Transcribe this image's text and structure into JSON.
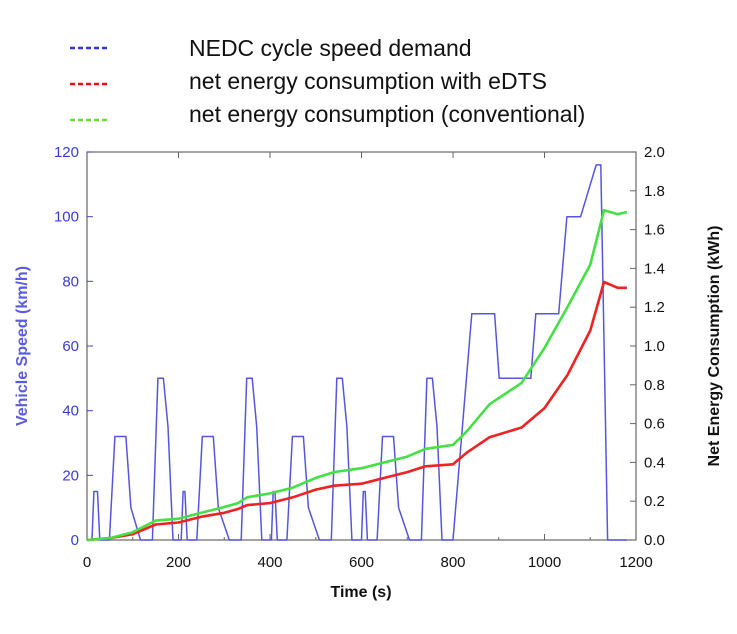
{
  "chart_data": {
    "type": "line",
    "x_label": "Time (s)",
    "y_left_label": "Vehicle Speed (km/h)",
    "y_right_label": "Net Energy Consumption (kWh)",
    "x_range": [
      0,
      1200
    ],
    "y_left_range": [
      0,
      120
    ],
    "y_right_range": [
      0,
      2.0
    ],
    "x_ticks": [
      "0",
      "200",
      "400",
      "600",
      "800",
      "1000",
      "1200"
    ],
    "y_left_ticks": [
      "0",
      "20",
      "40",
      "60",
      "80",
      "100",
      "120"
    ],
    "y_right_ticks": [
      "0.0",
      "0.2",
      "0.4",
      "0.6",
      "0.8",
      "1.0",
      "1.2",
      "1.4",
      "1.6",
      "1.8",
      "2.0"
    ],
    "legend_position": "top",
    "legend": [
      {
        "label": "NEDC cycle speed demand",
        "color": "#3333dd",
        "style": "dashed"
      },
      {
        "label": "net energy consumption with eDTS",
        "color": "#ee1111",
        "style": "dashed"
      },
      {
        "label": "net energy consumption (conventional)",
        "color": "#66dd33",
        "style": "dashed"
      }
    ],
    "series": [
      {
        "name": "NEDC cycle speed demand",
        "axis": "left",
        "color": "#5555e0",
        "points": [
          [
            0,
            0
          ],
          [
            11,
            0
          ],
          [
            15,
            15
          ],
          [
            23,
            15
          ],
          [
            28,
            0
          ],
          [
            49,
            0
          ],
          [
            61,
            32
          ],
          [
            85,
            32
          ],
          [
            96,
            10
          ],
          [
            117,
            0
          ],
          [
            143,
            0
          ],
          [
            155,
            50
          ],
          [
            167,
            50
          ],
          [
            177,
            35
          ],
          [
            188,
            0
          ],
          [
            206,
            0
          ],
          [
            210,
            15
          ],
          [
            214,
            15
          ],
          [
            219,
            0
          ],
          [
            240,
            0
          ],
          [
            252,
            32
          ],
          [
            276,
            32
          ],
          [
            287,
            10
          ],
          [
            311,
            0
          ],
          [
            337,
            0
          ],
          [
            349,
            50
          ],
          [
            361,
            50
          ],
          [
            371,
            35
          ],
          [
            382,
            0
          ],
          [
            403,
            0
          ],
          [
            407,
            15
          ],
          [
            411,
            15
          ],
          [
            416,
            0
          ],
          [
            437,
            0
          ],
          [
            449,
            32
          ],
          [
            473,
            32
          ],
          [
            484,
            10
          ],
          [
            508,
            0
          ],
          [
            534,
            0
          ],
          [
            546,
            50
          ],
          [
            558,
            50
          ],
          [
            568,
            35
          ],
          [
            579,
            0
          ],
          [
            600,
            0
          ],
          [
            604,
            15
          ],
          [
            608,
            15
          ],
          [
            613,
            0
          ],
          [
            634,
            0
          ],
          [
            646,
            32
          ],
          [
            670,
            32
          ],
          [
            681,
            10
          ],
          [
            705,
            0
          ],
          [
            731,
            0
          ],
          [
            743,
            50
          ],
          [
            755,
            50
          ],
          [
            765,
            35
          ],
          [
            776,
            0
          ],
          [
            800,
            0
          ],
          [
            841,
            70
          ],
          [
            891,
            70
          ],
          [
            901,
            50
          ],
          [
            970,
            50
          ],
          [
            981,
            70
          ],
          [
            1031,
            70
          ],
          [
            1049,
            100
          ],
          [
            1079,
            100
          ],
          [
            1113,
            116
          ],
          [
            1123,
            116
          ],
          [
            1138,
            0
          ],
          [
            1180,
            0
          ]
        ]
      },
      {
        "name": "net energy consumption with eDTS",
        "axis": "right",
        "color": "#ee2222",
        "points": [
          [
            0,
            0.0
          ],
          [
            50,
            0.01
          ],
          [
            100,
            0.03
          ],
          [
            150,
            0.08
          ],
          [
            200,
            0.09
          ],
          [
            250,
            0.12
          ],
          [
            300,
            0.14
          ],
          [
            330,
            0.16
          ],
          [
            350,
            0.18
          ],
          [
            400,
            0.19
          ],
          [
            450,
            0.22
          ],
          [
            500,
            0.26
          ],
          [
            540,
            0.28
          ],
          [
            600,
            0.29
          ],
          [
            650,
            0.32
          ],
          [
            700,
            0.35
          ],
          [
            740,
            0.38
          ],
          [
            800,
            0.39
          ],
          [
            830,
            0.45
          ],
          [
            880,
            0.53
          ],
          [
            950,
            0.58
          ],
          [
            1000,
            0.68
          ],
          [
            1050,
            0.85
          ],
          [
            1100,
            1.08
          ],
          [
            1130,
            1.33
          ],
          [
            1160,
            1.3
          ],
          [
            1180,
            1.3
          ]
        ]
      },
      {
        "name": "net energy consumption (conventional)",
        "axis": "right",
        "color": "#44e044",
        "points": [
          [
            0,
            0.0
          ],
          [
            50,
            0.01
          ],
          [
            100,
            0.04
          ],
          [
            150,
            0.1
          ],
          [
            200,
            0.11
          ],
          [
            250,
            0.14
          ],
          [
            300,
            0.17
          ],
          [
            330,
            0.19
          ],
          [
            350,
            0.22
          ],
          [
            400,
            0.24
          ],
          [
            450,
            0.27
          ],
          [
            500,
            0.32
          ],
          [
            540,
            0.35
          ],
          [
            600,
            0.37
          ],
          [
            650,
            0.4
          ],
          [
            700,
            0.43
          ],
          [
            740,
            0.47
          ],
          [
            800,
            0.49
          ],
          [
            830,
            0.56
          ],
          [
            880,
            0.7
          ],
          [
            950,
            0.81
          ],
          [
            1000,
            0.99
          ],
          [
            1050,
            1.2
          ],
          [
            1100,
            1.42
          ],
          [
            1130,
            1.7
          ],
          [
            1160,
            1.68
          ],
          [
            1180,
            1.69
          ]
        ]
      }
    ]
  }
}
